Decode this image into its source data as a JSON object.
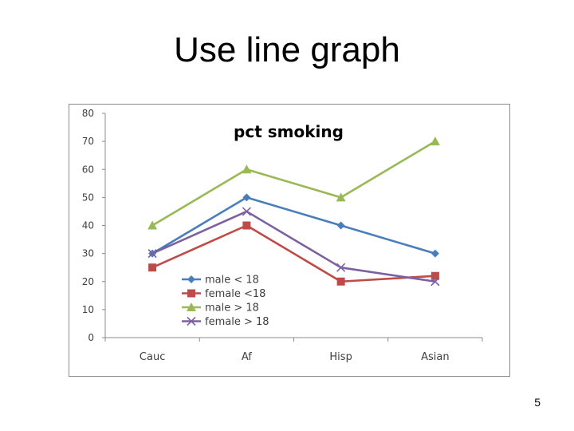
{
  "slide": {
    "title": "Use line graph",
    "page_number": "5"
  },
  "chart_data": {
    "type": "line",
    "title": "pct smoking",
    "categories": [
      "Cauc",
      "Af",
      "Hisp",
      "Asian"
    ],
    "ylim": [
      0,
      80
    ],
    "y_ticks": [
      "0",
      "10",
      "20",
      "30",
      "40",
      "50",
      "60",
      "70",
      "80"
    ],
    "grid": false,
    "legend_position": "bottom-left",
    "series": [
      {
        "name": "male < 18",
        "values": [
          30,
          50,
          40,
          30
        ],
        "color": "#4a7ebb",
        "marker": "diamond"
      },
      {
        "name": "female <18",
        "values": [
          25,
          40,
          20,
          22
        ],
        "color": "#be4b48",
        "marker": "square"
      },
      {
        "name": "male > 18",
        "values": [
          40,
          60,
          50,
          70
        ],
        "color": "#98b954",
        "marker": "triangle"
      },
      {
        "name": "female > 18",
        "values": [
          30,
          45,
          25,
          20
        ],
        "color": "#7d60a0",
        "marker": "x"
      }
    ]
  }
}
